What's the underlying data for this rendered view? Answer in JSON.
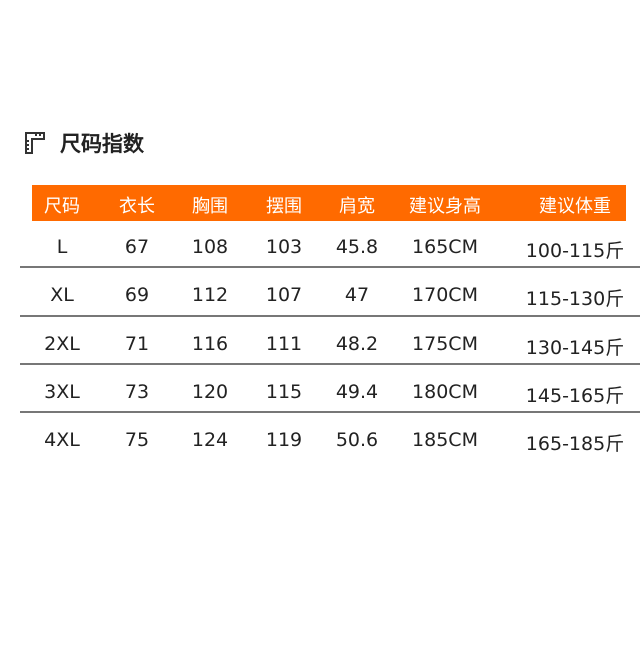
{
  "title": {
    "icon": "ruler-icon",
    "text": "尺码指数"
  },
  "colors": {
    "header_bg": "#ff6a00",
    "header_text": "#ffffff"
  },
  "table": {
    "headers": [
      "尺码",
      "衣长",
      "胸围",
      "摆围",
      "肩宽",
      "建议身高",
      "建议体重"
    ],
    "rows": [
      [
        "L",
        "67",
        "108",
        "103",
        "45.8",
        "165CM",
        "100-115斤"
      ],
      [
        "XL",
        "69",
        "112",
        "107",
        "47",
        "170CM",
        "115-130斤"
      ],
      [
        "2XL",
        "71",
        "116",
        "111",
        "48.2",
        "175CM",
        "130-145斤"
      ],
      [
        "3XL",
        "73",
        "120",
        "115",
        "49.4",
        "180CM",
        "145-165斤"
      ],
      [
        "4XL",
        "75",
        "124",
        "119",
        "50.6",
        "185CM",
        "165-185斤"
      ]
    ]
  }
}
